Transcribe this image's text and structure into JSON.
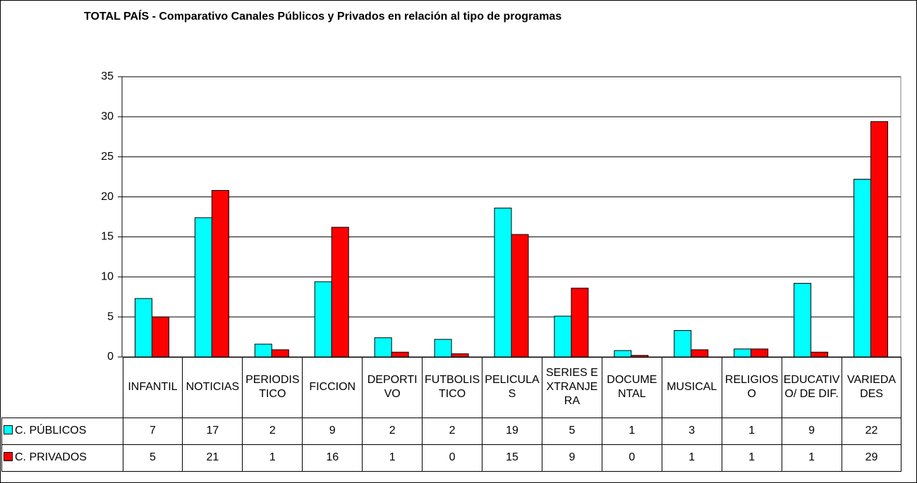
{
  "chart_data": {
    "type": "bar",
    "title": "TOTAL PAÍS - Comparativo Canales Públicos y Privados en relación al tipo de programas",
    "categories": [
      "INFANTIL",
      "NOTICIAS",
      "PERIODISTICO",
      "FICCION",
      "DEPORTIVO",
      "FUTBOLISTICO",
      "PELICULAS",
      "SERIES EXTRANJERA",
      "DOCUMENTAL",
      "MUSICAL",
      "RELIGIOSO",
      "EDUCATIVO/ DE DIF.",
      "VARIEDADES"
    ],
    "series": [
      {
        "name": "C. PÚBLICOS",
        "color": "#00ffff",
        "values": [
          7.3,
          17.4,
          1.6,
          9.4,
          2.4,
          2.2,
          18.6,
          5.1,
          0.8,
          3.3,
          1.0,
          9.2,
          22.2
        ],
        "value_labels": [
          "7",
          "17",
          "2",
          "9",
          "2",
          "2",
          "19",
          "5",
          "1",
          "3",
          "1",
          "9",
          "22"
        ]
      },
      {
        "name": "C. PRIVADOS",
        "color": "#ff0000",
        "values": [
          5.0,
          20.8,
          0.9,
          16.2,
          0.6,
          0.4,
          15.3,
          8.6,
          0.2,
          0.9,
          1.0,
          0.6,
          29.4
        ],
        "value_labels": [
          "5",
          "21",
          "1",
          "16",
          "1",
          "0",
          "15",
          "9",
          "0",
          "1",
          "1",
          "1",
          "29"
        ]
      }
    ],
    "ylim": [
      0,
      35
    ],
    "yticks": [
      0,
      5,
      10,
      15,
      20,
      25,
      30,
      35
    ],
    "grid": true
  }
}
